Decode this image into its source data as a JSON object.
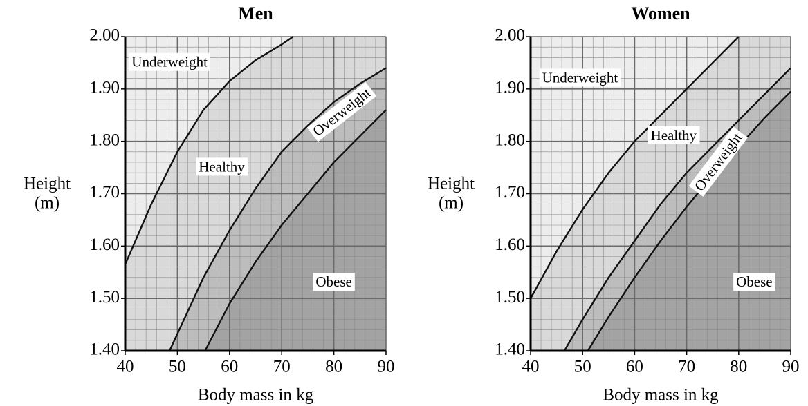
{
  "chart_data": [
    {
      "type": "line",
      "title": "Men",
      "xlabel": "Body mass in kg",
      "ylabel": [
        "Height",
        "(m)"
      ],
      "xlim": [
        40,
        90
      ],
      "ylim": [
        1.4,
        2.0
      ],
      "xticks": [
        40,
        50,
        60,
        70,
        80,
        90
      ],
      "yticks": [
        {
          "value": 1.4,
          "label": "1.40"
        },
        {
          "value": 1.5,
          "label": "1.50"
        },
        {
          "value": 1.6,
          "label": "1.60"
        },
        {
          "value": 1.7,
          "label": "1.70"
        },
        {
          "value": 1.8,
          "label": "1.80"
        },
        {
          "value": 1.9,
          "label": "1.90"
        },
        {
          "value": 2.0,
          "label": "2.00"
        }
      ],
      "grid": true,
      "minor_grid": {
        "x": 2,
        "y": 0.02
      },
      "region_colors": [
        "#ededed",
        "#d9d9d9",
        "#bdbdbd",
        "#a3a3a3"
      ],
      "series": [
        {
          "color": "#111111",
          "x": [
            40,
            45,
            50,
            55,
            60,
            65,
            70,
            72.2
          ],
          "values": [
            1.565,
            1.68,
            1.78,
            1.86,
            1.915,
            1.955,
            1.985,
            2.0
          ]
        },
        {
          "color": "#111111",
          "x": [
            48.5,
            55,
            60,
            65,
            70,
            75,
            80,
            85,
            90
          ],
          "values": [
            1.4,
            1.54,
            1.63,
            1.71,
            1.78,
            1.83,
            1.875,
            1.91,
            1.94
          ]
        },
        {
          "color": "#111111",
          "x": [
            55.3,
            60,
            65,
            70,
            75,
            80,
            85,
            90
          ],
          "values": [
            1.4,
            1.49,
            1.57,
            1.64,
            1.7,
            1.76,
            1.81,
            1.86
          ]
        }
      ],
      "annotations": [
        {
          "text": "Underweight",
          "x": 48.5,
          "y": 1.95
        },
        {
          "text": "Healthy",
          "x": 58.5,
          "y": 1.75
        },
        {
          "text": "Overweight",
          "x": 81.6,
          "y": 1.855
        },
        {
          "text": "Obese",
          "x": 80,
          "y": 1.53
        }
      ]
    },
    {
      "type": "line",
      "title": "Women",
      "xlabel": "Body mass in kg",
      "ylabel": [
        "Height",
        "(m)"
      ],
      "xlim": [
        40,
        90
      ],
      "ylim": [
        1.4,
        2.0
      ],
      "xticks": [
        40,
        50,
        60,
        70,
        80,
        90
      ],
      "yticks": [
        {
          "value": 1.4,
          "label": "1.40"
        },
        {
          "value": 1.5,
          "label": "1.50"
        },
        {
          "value": 1.6,
          "label": "1.60"
        },
        {
          "value": 1.7,
          "label": "1.70"
        },
        {
          "value": 1.8,
          "label": "1.80"
        },
        {
          "value": 1.9,
          "label": "1.90"
        },
        {
          "value": 2.0,
          "label": "2.00"
        }
      ],
      "grid": true,
      "minor_grid": {
        "x": 2,
        "y": 0.02
      },
      "region_colors": [
        "#ededed",
        "#d9d9d9",
        "#bdbdbd",
        "#a3a3a3"
      ],
      "series": [
        {
          "color": "#111111",
          "x": [
            40,
            45,
            50,
            55,
            60,
            65,
            70,
            75,
            80
          ],
          "values": [
            1.5,
            1.59,
            1.67,
            1.74,
            1.8,
            1.85,
            1.9,
            1.95,
            2.0
          ]
        },
        {
          "color": "#111111",
          "x": [
            46.5,
            50,
            55,
            60,
            65,
            70,
            75,
            80,
            85,
            90
          ],
          "values": [
            1.4,
            1.46,
            1.54,
            1.61,
            1.68,
            1.74,
            1.79,
            1.84,
            1.89,
            1.94
          ]
        },
        {
          "color": "#111111",
          "x": [
            51,
            55,
            60,
            65,
            70,
            75,
            80,
            85,
            90
          ],
          "values": [
            1.4,
            1.465,
            1.54,
            1.61,
            1.675,
            1.735,
            1.79,
            1.845,
            1.895
          ]
        }
      ],
      "annotations": [
        {
          "text": "Underweight",
          "x": 49.5,
          "y": 1.92
        },
        {
          "text": "Healthy",
          "x": 67.5,
          "y": 1.81
        },
        {
          "text": "Overweight",
          "x": 76.2,
          "y": 1.76
        },
        {
          "text": "Obese",
          "x": 83,
          "y": 1.53
        }
      ]
    }
  ]
}
